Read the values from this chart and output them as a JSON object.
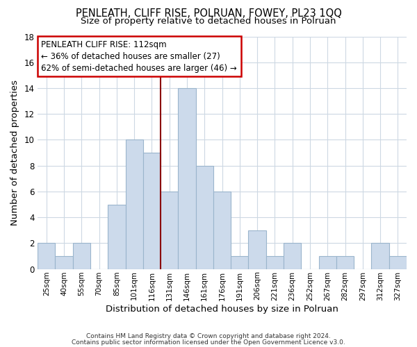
{
  "title": "PENLEATH, CLIFF RISE, POLRUAN, FOWEY, PL23 1QQ",
  "subtitle": "Size of property relative to detached houses in Polruan",
  "xlabel": "Distribution of detached houses by size in Polruan",
  "ylabel": "Number of detached properties",
  "bar_color": "#ccdaeb",
  "bar_edge_color": "#9ab5cc",
  "bins": [
    "25sqm",
    "40sqm",
    "55sqm",
    "70sqm",
    "85sqm",
    "101sqm",
    "116sqm",
    "131sqm",
    "146sqm",
    "161sqm",
    "176sqm",
    "191sqm",
    "206sqm",
    "221sqm",
    "236sqm",
    "252sqm",
    "267sqm",
    "282sqm",
    "297sqm",
    "312sqm",
    "327sqm"
  ],
  "values": [
    2,
    1,
    2,
    0,
    5,
    10,
    9,
    6,
    14,
    8,
    6,
    1,
    3,
    1,
    2,
    0,
    1,
    1,
    0,
    2,
    1
  ],
  "ylim": [
    0,
    18
  ],
  "yticks": [
    0,
    2,
    4,
    6,
    8,
    10,
    12,
    14,
    16,
    18
  ],
  "vline_x_index": 7,
  "vline_color": "#8b0000",
  "annotation_line1": "PENLEATH CLIFF RISE: 112sqm",
  "annotation_line2": "← 36% of detached houses are smaller (27)",
  "annotation_line3": "62% of semi-detached houses are larger (46) →",
  "footer1": "Contains HM Land Registry data © Crown copyright and database right 2024.",
  "footer2": "Contains public sector information licensed under the Open Government Licence v3.0.",
  "background_color": "#ffffff",
  "grid_color": "#cdd8e3"
}
